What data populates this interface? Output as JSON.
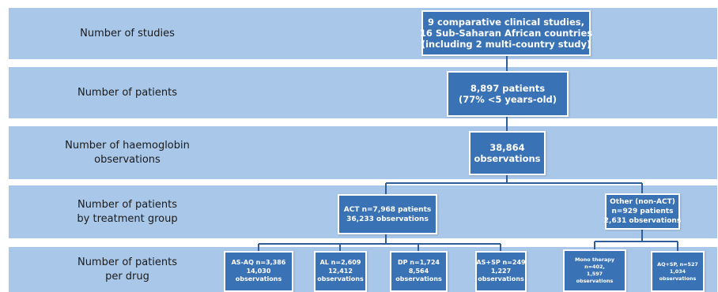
{
  "rows": {
    "studies": "Number of studies",
    "patients": "Number of patients",
    "observations_line1": "Number of haemoglobin",
    "observations_line2": "observations",
    "treatment_line1": "Number of patients",
    "treatment_line2": "by treatment group",
    "drug_line1": "Number of patients",
    "drug_line2": "per drug"
  },
  "boxes": {
    "studies": [
      "9 comparative clinical studies,",
      "16 Sub-Saharan African countries",
      "(including 2 multi-country study)"
    ],
    "patients": [
      "8,897 patients",
      "(77% <5 years-old)"
    ],
    "observations": [
      "38,864",
      "observations"
    ],
    "act": [
      "ACT n=7,968 patients",
      "36,233 observations"
    ],
    "other": [
      "Other (non-ACT)",
      "n=929 patients",
      "2,631 observations"
    ],
    "asaq": [
      "AS-AQ n=3,386",
      "14,030",
      "observations"
    ],
    "al": [
      "AL n=2,609",
      "12,412",
      "observations"
    ],
    "dp": [
      "DP n=1,724",
      "8,564",
      "observations"
    ],
    "assp": [
      "AS+SP n=249",
      "1,227",
      "observations"
    ],
    "mono": [
      "Mono therapy",
      "n=402,",
      "1,597",
      "observations"
    ],
    "aqsp": [
      "AQ+SP, n=527",
      "1,034",
      "observations"
    ]
  },
  "colors": {
    "band": "#a9c7e8",
    "box": "#3a72b6",
    "connector": "#2f5f9a"
  }
}
